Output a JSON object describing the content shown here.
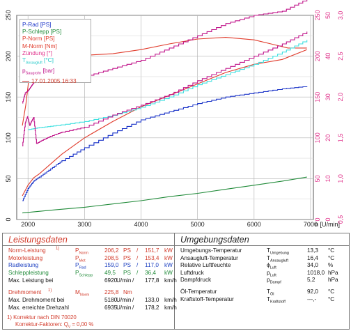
{
  "chart_data": {
    "type": "line",
    "title": "",
    "xlabel": "n [U/min]",
    "x_ticks": [
      2000,
      3000,
      4000,
      5000,
      6000,
      7000
    ],
    "xlim": [
      1800,
      7050
    ],
    "y_left": {
      "ylim": [
        0,
        250
      ],
      "ticks": [
        0,
        50,
        100,
        150,
        200,
        250
      ]
    },
    "y_right1": {
      "ylim": [
        0,
        250
      ],
      "ticks": [
        0,
        50,
        100,
        150,
        200,
        250
      ],
      "color": "#e0308a"
    },
    "y_right2": {
      "ylim": [
        0,
        50
      ],
      "ticks": [
        0,
        10,
        20,
        30,
        40,
        50
      ],
      "color": "#e0308a"
    },
    "y_right3": {
      "ylim": [
        0.5,
        3.0
      ],
      "ticks": [
        0.5,
        1.0,
        1.5,
        2.0,
        2.5,
        3.0
      ],
      "color": "#e0308a"
    },
    "grid": true,
    "series": [
      {
        "name": "P-Rad [PS]",
        "color": "#1a33c8",
        "x": [
          1900,
          2000,
          2100,
          2200,
          2400,
          2600,
          3000,
          3500,
          4000,
          4500,
          5000,
          5500,
          6000,
          6500,
          6935
        ],
        "y": [
          23,
          38,
          47,
          52,
          62,
          72,
          88,
          106,
          122,
          132,
          142,
          150,
          155,
          160,
          163
        ]
      },
      {
        "name": "P-Schlepp [PS]",
        "color": "#1f8a38",
        "x": [
          1900,
          2500,
          3000,
          3500,
          4000,
          4500,
          5000,
          5500,
          6000,
          6500,
          6935
        ],
        "y": [
          8,
          12,
          15,
          19,
          23,
          28,
          32,
          37,
          42,
          47,
          52
        ]
      },
      {
        "name": "P-Norm [PS]",
        "color": "#e03a2a",
        "x": [
          1900,
          2000,
          2100,
          2200,
          2400,
          2600,
          3000,
          3500,
          4000,
          4500,
          5000,
          5500,
          6000,
          6500,
          6935
        ],
        "y": [
          29,
          42,
          51,
          56,
          68,
          80,
          100,
          120,
          138,
          152,
          166,
          180,
          190,
          196,
          208
        ]
      },
      {
        "name": "M-Norm [Nm]",
        "color": "#e03a2a",
        "x": [
          1900,
          1960,
          2020,
          2080,
          2150,
          2300,
          2600,
          3000,
          3500,
          4000,
          4500,
          5000,
          5500,
          6000,
          6300,
          6600,
          6935
        ],
        "y": [
          115,
          140,
          175,
          192,
          196,
          197,
          199,
          201,
          203,
          208,
          215,
          221,
          223,
          220,
          215,
          210,
          210
        ]
      },
      {
        "name": "Zündung [°]",
        "color": "#c0148a",
        "x": [
          1900,
          1950,
          2000,
          2050,
          2100,
          2200,
          2400,
          2600,
          2900,
          3000,
          3500,
          4000,
          4500,
          5000,
          5500,
          6000,
          6500,
          6935
        ],
        "y": [
          28.5,
          31,
          31.5,
          32.5,
          33.5,
          34.5,
          35,
          35.5,
          34.5,
          35,
          37,
          39,
          42,
          45,
          48,
          50,
          51,
          54
        ]
      },
      {
        "name": "T_Ansaugluft [°C]",
        "color": "#3ee0e0",
        "x": [
          2000,
          2200,
          2500,
          3000,
          3500,
          4000,
          4500,
          5000,
          5500,
          6000,
          6500,
          6935
        ],
        "y": [
          22,
          22.5,
          23,
          24,
          25.5,
          27.5,
          30,
          33,
          35.5,
          38,
          41,
          44
        ]
      },
      {
        "name": "p_Saugrohr [bar]",
        "color": "#c0148a",
        "x": [
          1900,
          1950,
          1990,
          2030,
          2060,
          2100,
          2150,
          2250,
          2400,
          2600,
          3000,
          3500,
          4000,
          4500,
          5000,
          5500,
          6000,
          6500,
          6935
        ],
        "y": [
          1.4,
          1.68,
          1.76,
          1.65,
          1.7,
          1.75,
          1.43,
          1.47,
          1.52,
          1.57,
          1.63,
          1.78,
          1.9,
          2.03,
          2.2,
          2.35,
          2.5,
          2.65,
          2.8
        ]
      }
    ],
    "legend": {
      "entries": [
        "P-Rad [PS]",
        "P-Schlepp [PS]",
        "P-Norm [PS]",
        "M-Norm [Nm]",
        "Zündung [°]",
        "T_Ansaugluft [°C]",
        "p_Saugrohr [bar]"
      ],
      "date_label": "17.01.2005 16:33",
      "placement": "top-left"
    }
  },
  "legend_text": {
    "p_rad": "P-Rad [PS]",
    "p_schlepp": "P-Schlepp [PS]",
    "p_norm": "P-Norm [PS]",
    "m_norm": "M-Norm [Nm]",
    "zuendung": "Zündung [°]",
    "t_main": "T",
    "t_sub": "Ansaugluft",
    "t_unit": " [°C]",
    "p_main": "p",
    "p_sub": "Saugrohr",
    "p_unit": " [bar]",
    "date": "17.01.2005 16:33"
  },
  "left_panel": {
    "title": "Leistungsdaten",
    "rows": [
      {
        "label": "Norm-Leistung",
        "footnote": "1)",
        "sym": "P",
        "sub": "Norm",
        "v1": "206,2",
        "u1": "PS",
        "sep": "/",
        "v2": "151,7",
        "u2": "kW",
        "color": "red"
      },
      {
        "label": "Motorleistung",
        "footnote": "",
        "sym": "P",
        "sub": "Mot",
        "v1": "208,5",
        "u1": "PS",
        "sep": "/",
        "v2": "153,4",
        "u2": "kW",
        "color": "red"
      },
      {
        "label": "Radleistung",
        "footnote": "",
        "sym": "P",
        "sub": "Rad",
        "v1": "159,0",
        "u1": "PS",
        "sep": "/",
        "v2": "117,0",
        "u2": "kW",
        "color": "blue"
      },
      {
        "label": "Schleppleistung",
        "footnote": "",
        "sym": "P",
        "sub": "Schlepp",
        "v1": "49,5",
        "u1": "PS",
        "sep": "/",
        "v2": "36,4",
        "u2": "kW",
        "color": "green"
      },
      {
        "label": "Max. Leistung bei",
        "footnote": "",
        "sym": "",
        "sub": "",
        "v1": "6920",
        "u1": "U/min",
        "sep": "/",
        "v2": "177,8",
        "u2": "km/h",
        "color": "blk"
      }
    ],
    "drehmoment": {
      "label": "Drehmoment",
      "footnote": "1)",
      "sym": "M",
      "sub": "Norm",
      "v1": "225,8",
      "u1": "Nm"
    },
    "max_dreh": {
      "label": "Max. Drehmoment bei",
      "v1": "5180",
      "u1": "U/min",
      "sep": "/",
      "v2": "133,0",
      "u2": "km/h"
    },
    "max_zahl": {
      "label": "Max. erreichte Drehzahl",
      "v1": "6935",
      "u1": "U/min",
      "sep": "/",
      "v2": "178,2",
      "u2": "km/h"
    },
    "korrektur1": "1) Korrektur nach DIN 70020",
    "korrektur2_pre": "Korrektur-Faktoren: Q",
    "korrektur2_sub": "V",
    "korrektur2_post": " = 0,00 %"
  },
  "right_panel": {
    "title": "Umgebungsdaten",
    "rows": [
      {
        "label": "Umgebungs-Temperatur",
        "sym": "T",
        "sub": "Umgebung",
        "val": "13,3",
        "unit": "°C"
      },
      {
        "label": "Ansaugluft-Temperatur",
        "sym": "T",
        "sub": "Ansaugluft",
        "val": "16,4",
        "unit": "°C"
      },
      {
        "label": "Relative Luftfeuchte",
        "sym": "ϕ",
        "sub": "Luft",
        "val": "34,0",
        "unit": "%"
      },
      {
        "label": "Luftdruck",
        "sym": "p",
        "sub": "Luft",
        "val": "1018,0",
        "unit": "hPa"
      },
      {
        "label": "Dampfdruck",
        "sym": "p",
        "sub": "Dampf",
        "val": "5,2",
        "unit": "hPa"
      },
      {
        "label": "Öl-Temperatur",
        "sym": "T",
        "sub": "Öl",
        "val": "92,0",
        "unit": "°C"
      },
      {
        "label": "Kraftstoff-Temperatur",
        "sym": "T",
        "sub": "Kraftstoff",
        "val": "---,-",
        "unit": "°C"
      }
    ]
  }
}
